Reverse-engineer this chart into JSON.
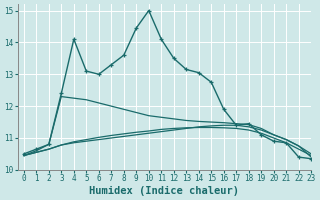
{
  "title": "",
  "xlabel": "Humidex (Indice chaleur)",
  "xlim": [
    -0.5,
    23
  ],
  "ylim": [
    10,
    15.2
  ],
  "background_color": "#cfe8e8",
  "grid_color": "#ffffff",
  "line_color": "#1a6b6b",
  "lines": [
    {
      "x": [
        0,
        1,
        2,
        3,
        4,
        5,
        6,
        7,
        8,
        9,
        10,
        11,
        12,
        13,
        14,
        15,
        16,
        17,
        18,
        19,
        20,
        21,
        22,
        23
      ],
      "y": [
        10.5,
        10.65,
        10.8,
        12.4,
        14.1,
        13.1,
        13.0,
        13.3,
        13.6,
        14.45,
        15.0,
        14.1,
        13.5,
        13.15,
        13.05,
        12.75,
        11.9,
        11.4,
        11.45,
        11.1,
        10.9,
        10.85,
        10.4,
        10.35
      ],
      "marker": true,
      "linewidth": 1.0
    },
    {
      "x": [
        0,
        1,
        2,
        3,
        4,
        5,
        6,
        7,
        8,
        9,
        10,
        11,
        12,
        13,
        14,
        15,
        16,
        17,
        18,
        19,
        20,
        21,
        22,
        23
      ],
      "y": [
        10.45,
        10.55,
        10.65,
        10.78,
        10.85,
        10.9,
        10.95,
        11.0,
        11.05,
        11.1,
        11.15,
        11.2,
        11.25,
        11.3,
        11.35,
        11.38,
        11.4,
        11.4,
        11.35,
        11.25,
        11.1,
        10.95,
        10.75,
        10.5
      ],
      "marker": false,
      "linewidth": 0.9,
      "linestyle": "-"
    },
    {
      "x": [
        0,
        1,
        2,
        3,
        4,
        5,
        6,
        7,
        8,
        9,
        10,
        11,
        12,
        13,
        14,
        15,
        16,
        17,
        18,
        19,
        20,
        21,
        22,
        23
      ],
      "y": [
        10.45,
        10.55,
        10.65,
        10.78,
        10.88,
        10.95,
        11.02,
        11.08,
        11.13,
        11.18,
        11.22,
        11.27,
        11.3,
        11.32,
        11.33,
        11.33,
        11.32,
        11.3,
        11.25,
        11.15,
        11.0,
        10.85,
        10.65,
        10.45
      ],
      "marker": false,
      "linewidth": 0.9,
      "linestyle": "-"
    },
    {
      "x": [
        0,
        1,
        2,
        3,
        4,
        5,
        6,
        7,
        8,
        9,
        10,
        11,
        12,
        13,
        14,
        15,
        16,
        17,
        18,
        19,
        20,
        21,
        22,
        23
      ],
      "y": [
        10.45,
        10.6,
        10.8,
        12.3,
        12.25,
        12.2,
        12.1,
        12.0,
        11.9,
        11.8,
        11.7,
        11.65,
        11.6,
        11.55,
        11.52,
        11.5,
        11.48,
        11.45,
        11.42,
        11.3,
        11.1,
        10.95,
        10.75,
        10.4
      ],
      "marker": false,
      "linewidth": 0.9,
      "linestyle": "-"
    }
  ],
  "xticks": [
    0,
    1,
    2,
    3,
    4,
    5,
    6,
    7,
    8,
    9,
    10,
    11,
    12,
    13,
    14,
    15,
    16,
    17,
    18,
    19,
    20,
    21,
    22,
    23
  ],
  "yticks": [
    10,
    11,
    12,
    13,
    14,
    15
  ],
  "tick_fontsize": 5.5,
  "label_fontsize": 7.5
}
